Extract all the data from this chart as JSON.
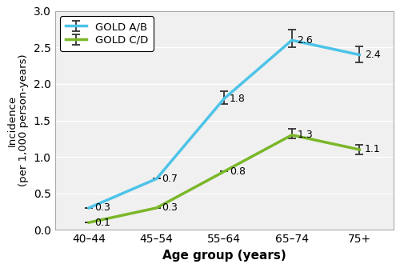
{
  "categories": [
    "40–44",
    "45–54",
    "55–64",
    "65–74",
    "75+"
  ],
  "gold_ab": [
    0.3,
    0.7,
    1.8,
    2.6,
    2.4
  ],
  "gold_cd": [
    0.1,
    0.3,
    0.8,
    1.3,
    1.1
  ],
  "gold_ab_yerr": [
    [
      0.0,
      0.0,
      0.08,
      0.1,
      0.1
    ],
    [
      0.0,
      0.0,
      0.1,
      0.15,
      0.12
    ]
  ],
  "gold_cd_yerr": [
    [
      0.0,
      0.0,
      0.0,
      0.05,
      0.07
    ],
    [
      0.0,
      0.0,
      0.0,
      0.08,
      0.07
    ]
  ],
  "color_ab": "#4dc3e8",
  "color_cd": "#7ab729",
  "ecolor": "#333333",
  "xlabel": "Age group (years)",
  "ylabel": "Incidence\n(per 1,000 person-years)",
  "ylim": [
    0.0,
    3.0
  ],
  "yticks": [
    0.0,
    0.5,
    1.0,
    1.5,
    2.0,
    2.5,
    3.0
  ],
  "legend_ab": "GOLD A/B",
  "legend_cd": "GOLD C/D",
  "label_ab": [
    "0.3",
    "0.7",
    "1.8",
    "2.6",
    "2.4"
  ],
  "label_cd": [
    "0.1",
    "0.3",
    "0.8",
    "1.3",
    "1.1"
  ],
  "bg_color": "#f0f0f0",
  "grid_color": "#ffffff",
  "spine_color": "#aaaaaa"
}
